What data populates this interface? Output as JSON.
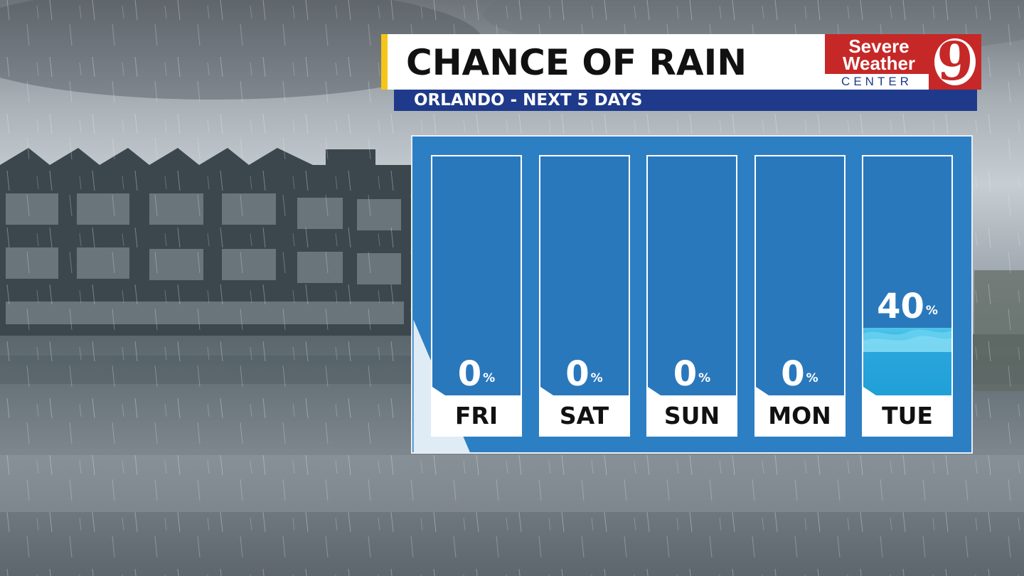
{
  "header": {
    "title": "CHANCE OF RAIN",
    "subtitle": "ORLANDO - NEXT 5 DAYS"
  },
  "logo": {
    "line1": "Severe",
    "line2": "Weather",
    "line3": "CENTER",
    "number": "9"
  },
  "colors": {
    "accent_yellow": "#f5c518",
    "subtitle_blue": "#1f3a8a",
    "logo_red": "#c62828",
    "panel_blue": "#2d7fc4",
    "rain_fill": "#2aa6dc"
  },
  "chart_data": {
    "type": "bar",
    "categories": [
      "FRI",
      "SAT",
      "SUN",
      "MON",
      "TUE"
    ],
    "values": [
      0,
      0,
      0,
      0,
      40
    ],
    "unit": "%",
    "title": "CHANCE OF RAIN",
    "subtitle": "ORLANDO - NEXT 5 DAYS",
    "ylim": [
      0,
      100
    ]
  }
}
